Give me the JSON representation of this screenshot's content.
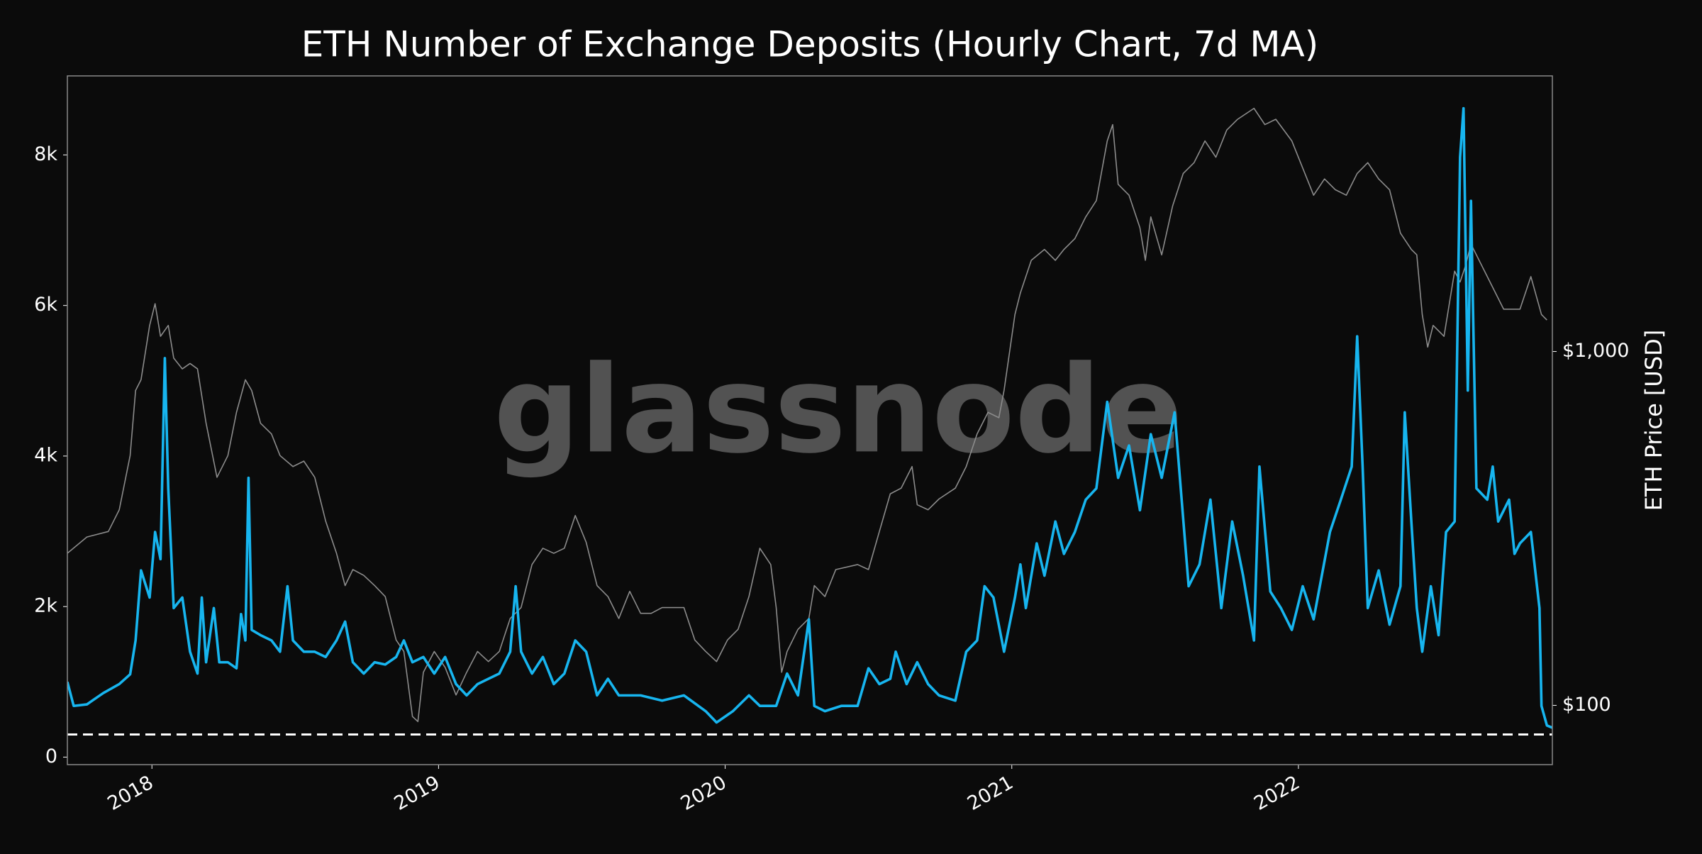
{
  "chart_data": {
    "type": "line",
    "title": "ETH Number of Exchange Deposits (Hourly Chart, 7d MA)",
    "watermark": "glassnode",
    "y2label": "ETH Price [USD]",
    "xlim": [
      2017.705,
      2022.886
    ],
    "xticks": [
      2018,
      2019,
      2020,
      2021,
      2022
    ],
    "ylim": [
      -100,
      9050
    ],
    "yticks": [
      0,
      {
        "value": 2000,
        "label": "2k"
      },
      {
        "value": 4000,
        "label": "4k"
      },
      {
        "value": 6000,
        "label": "6k"
      },
      {
        "value": 8000,
        "label": "8k"
      }
    ],
    "y2lim": [
      68,
      6010
    ],
    "y2scale": "log",
    "y2ticks": [
      {
        "value": 100,
        "label": "$100"
      },
      {
        "value": 1000,
        "label": "$1,000"
      }
    ],
    "reference_line": 300,
    "series": [
      {
        "color": "#8c8c8c",
        "axis": "y2",
        "x": [
          2017.705,
          2017.773,
          2017.848,
          2017.886,
          2017.924,
          2017.943,
          2017.962,
          2017.992,
          2018.011,
          2018.03,
          2018.057,
          2018.076,
          2018.106,
          2018.133,
          2018.159,
          2018.189,
          2018.227,
          2018.265,
          2018.295,
          2018.326,
          2018.348,
          2018.379,
          2018.417,
          2018.447,
          2018.492,
          2018.53,
          2018.568,
          2018.606,
          2018.644,
          2018.674,
          2018.701,
          2018.739,
          2018.777,
          2018.814,
          2018.852,
          2018.879,
          2018.909,
          2018.928,
          2018.947,
          2018.985,
          2019.023,
          2019.061,
          2019.098,
          2019.136,
          2019.174,
          2019.212,
          2019.25,
          2019.288,
          2019.326,
          2019.364,
          2019.402,
          2019.439,
          2019.477,
          2019.515,
          2019.553,
          2019.591,
          2019.629,
          2019.667,
          2019.705,
          2019.742,
          2019.78,
          2019.856,
          2019.894,
          2019.932,
          2019.97,
          2020.008,
          2020.045,
          2020.083,
          2020.121,
          2020.159,
          2020.178,
          2020.197,
          2020.216,
          2020.254,
          2020.292,
          2020.311,
          2020.348,
          2020.386,
          2020.462,
          2020.5,
          2020.538,
          2020.576,
          2020.614,
          2020.652,
          2020.67,
          2020.708,
          2020.746,
          2020.803,
          2020.841,
          2020.879,
          2020.917,
          2020.955,
          2020.973,
          2021.011,
          2021.03,
          2021.068,
          2021.114,
          2021.152,
          2021.182,
          2021.22,
          2021.258,
          2021.295,
          2021.333,
          2021.352,
          2021.371,
          2021.409,
          2021.447,
          2021.466,
          2021.485,
          2021.523,
          2021.561,
          2021.598,
          2021.636,
          2021.674,
          2021.712,
          2021.75,
          2021.788,
          2021.845,
          2021.883,
          2021.921,
          2021.977,
          2022.015,
          2022.053,
          2022.091,
          2022.129,
          2022.167,
          2022.205,
          2022.242,
          2022.28,
          2022.318,
          2022.356,
          2022.394,
          2022.413,
          2022.432,
          2022.451,
          2022.47,
          2022.508,
          2022.545,
          2022.564,
          2022.583,
          2022.602,
          2022.64,
          2022.678,
          2022.716,
          2022.773,
          2022.811,
          2022.848,
          2022.867
        ],
        "values": [
          269,
          299,
          310,
          357,
          508,
          776,
          832,
          1185,
          1365,
          1104,
          1185,
          958,
          893,
          925,
          893,
          627,
          441,
          508,
          673,
          832,
          776,
          627,
          585,
          508,
          473,
          490,
          441,
          332,
          269,
          218,
          242,
          233,
          218,
          203,
          153,
          142,
          93,
          90,
          124,
          142,
          128,
          107,
          124,
          142,
          133,
          142,
          176,
          189,
          250,
          278,
          269,
          278,
          344,
          289,
          218,
          203,
          176,
          210,
          182,
          182,
          189,
          189,
          153,
          142,
          133,
          153,
          164,
          203,
          278,
          250,
          189,
          124,
          142,
          164,
          176,
          218,
          203,
          242,
          250,
          242,
          310,
          396,
          411,
          473,
          369,
          357,
          383,
          411,
          473,
          585,
          673,
          650,
          776,
          1272,
          1464,
          1810,
          1943,
          1810,
          1943,
          2084,
          2401,
          2669,
          3937,
          4377,
          2968,
          2765,
          2237,
          1810,
          2401,
          1875,
          2576,
          3185,
          3418,
          3937,
          3541,
          4225,
          4533,
          4866,
          4377,
          4533,
          3937,
          3300,
          2765,
          3074,
          2865,
          2765,
          3185,
          3418,
          3074,
          2865,
          2160,
          1943,
          1875,
          1272,
          1029,
          1185,
          1104,
          1687,
          1572,
          1747,
          2012,
          1747,
          1517,
          1317,
          1317,
          1628,
          1272,
          1227
        ]
      },
      {
        "color": "#17b5ef",
        "x": [
          2017.705,
          2017.727,
          2017.773,
          2017.83,
          2017.886,
          2017.924,
          2017.943,
          2017.962,
          2017.992,
          2018.011,
          2018.03,
          2018.045,
          2018.057,
          2018.076,
          2018.106,
          2018.133,
          2018.159,
          2018.174,
          2018.189,
          2018.216,
          2018.235,
          2018.265,
          2018.295,
          2018.311,
          2018.326,
          2018.337,
          2018.348,
          2018.379,
          2018.417,
          2018.447,
          2018.473,
          2018.492,
          2018.53,
          2018.568,
          2018.606,
          2018.644,
          2018.674,
          2018.701,
          2018.739,
          2018.777,
          2018.814,
          2018.852,
          2018.879,
          2018.909,
          2018.947,
          2018.985,
          2019.023,
          2019.061,
          2019.098,
          2019.136,
          2019.174,
          2019.212,
          2019.25,
          2019.269,
          2019.288,
          2019.326,
          2019.364,
          2019.402,
          2019.439,
          2019.477,
          2019.515,
          2019.553,
          2019.591,
          2019.629,
          2019.705,
          2019.78,
          2019.856,
          2019.932,
          2019.97,
          2020.027,
          2020.083,
          2020.121,
          2020.178,
          2020.216,
          2020.254,
          2020.292,
          2020.311,
          2020.348,
          2020.405,
          2020.462,
          2020.5,
          2020.538,
          2020.576,
          2020.595,
          2020.633,
          2020.67,
          2020.708,
          2020.746,
          2020.803,
          2020.841,
          2020.879,
          2020.905,
          2020.936,
          2020.973,
          2021.011,
          2021.03,
          2021.049,
          2021.087,
          2021.114,
          2021.152,
          2021.182,
          2021.22,
          2021.258,
          2021.295,
          2021.333,
          2021.371,
          2021.409,
          2021.447,
          2021.485,
          2021.523,
          2021.568,
          2021.617,
          2021.655,
          2021.693,
          2021.731,
          2021.769,
          2021.807,
          2021.845,
          2021.864,
          2021.902,
          2021.939,
          2021.977,
          2022.015,
          2022.053,
          2022.11,
          2022.148,
          2022.186,
          2022.205,
          2022.224,
          2022.242,
          2022.28,
          2022.318,
          2022.356,
          2022.371,
          2022.394,
          2022.413,
          2022.432,
          2022.462,
          2022.489,
          2022.515,
          2022.545,
          2022.564,
          2022.576,
          2022.591,
          2022.602,
          2022.621,
          2022.659,
          2022.678,
          2022.697,
          2022.735,
          2022.754,
          2022.773,
          2022.811,
          2022.841,
          2022.848,
          2022.867,
          2022.886
        ],
        "values": [
          1000,
          680,
          700,
          850,
          970,
          1100,
          1550,
          2480,
          2120,
          2990,
          2630,
          5300,
          3570,
          1980,
          2120,
          1400,
          1110,
          2120,
          1260,
          1980,
          1260,
          1260,
          1180,
          1900,
          1550,
          3710,
          1690,
          1620,
          1550,
          1400,
          2270,
          1550,
          1400,
          1400,
          1330,
          1550,
          1800,
          1260,
          1110,
          1260,
          1230,
          1330,
          1550,
          1260,
          1330,
          1110,
          1330,
          970,
          820,
          970,
          1040,
          1110,
          1400,
          2270,
          1400,
          1110,
          1330,
          970,
          1110,
          1550,
          1400,
          820,
          1040,
          820,
          820,
          750,
          820,
          610,
          460,
          610,
          820,
          680,
          680,
          1110,
          820,
          1830,
          680,
          610,
          680,
          680,
          1180,
          970,
          1040,
          1400,
          970,
          1260,
          970,
          820,
          750,
          1400,
          1550,
          2270,
          2120,
          1400,
          2120,
          2560,
          1980,
          2840,
          2410,
          3130,
          2700,
          2990,
          3420,
          3570,
          4720,
          3710,
          4140,
          3280,
          4290,
          3710,
          4580,
          2270,
          2560,
          3420,
          1980,
          3130,
          2410,
          1550,
          3860,
          2200,
          1980,
          1690,
          2270,
          1830,
          2990,
          3420,
          3860,
          5590,
          3860,
          1980,
          2480,
          1760,
          2270,
          4580,
          3130,
          1980,
          1400,
          2270,
          1620,
          2990,
          3130,
          7970,
          8620,
          4870,
          7390,
          3570,
          3420,
          3860,
          3130,
          3420,
          2700,
          2840,
          2990,
          1980,
          680,
          420,
          390
        ]
      }
    ]
  }
}
